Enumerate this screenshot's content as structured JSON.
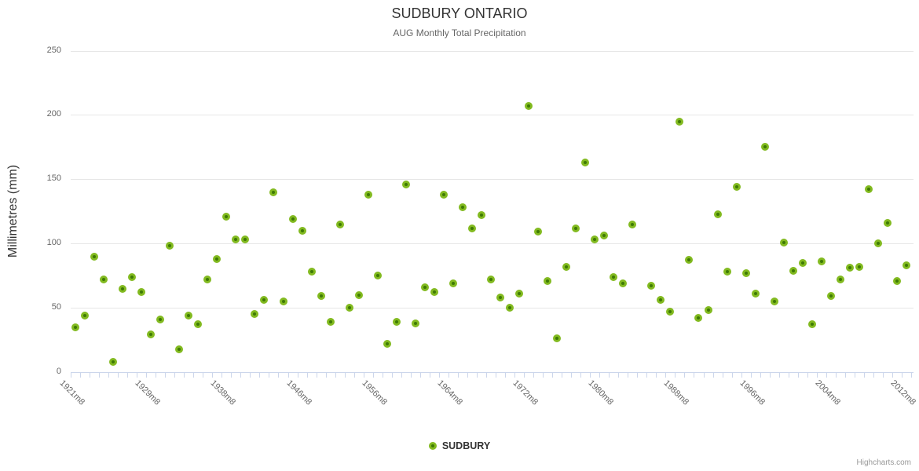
{
  "title": "SUDBURY ONTARIO",
  "subtitle": "AUG Monthly Total Precipitation",
  "y_axis": {
    "title": "Millimetres (mm)",
    "ticks": [
      0,
      50,
      100,
      150,
      200,
      250
    ],
    "max": 250
  },
  "x_axis": {
    "label_step": 8
  },
  "legend": {
    "label": "SUDBURY"
  },
  "credits": "Highcharts.com",
  "colors": {
    "marker_fill": "#3e7a04",
    "marker_line": "#82ba20",
    "grid": "#e6e6e6",
    "axis": "#ccd6eb",
    "text_dark": "#333333",
    "text_gray": "#666666",
    "credits_gray": "#999999"
  },
  "chart_data": {
    "type": "scatter",
    "title": "SUDBURY ONTARIO",
    "subtitle": "AUG Monthly Total Precipitation",
    "xlabel": "",
    "ylabel": "Millimetres (mm)",
    "ylim": [
      0,
      250
    ],
    "grid": true,
    "legend_position": "bottom",
    "categories": [
      "1921m8",
      "1922m8",
      "1923m8",
      "1924m8",
      "1925m8",
      "1926m8",
      "1927m8",
      "1928m8",
      "1929m8",
      "1930m8",
      "1932m8",
      "1933m8",
      "1934m8",
      "1935m8",
      "1936m8",
      "1937m8",
      "1938m8",
      "1939m8",
      "1940m8",
      "1941m8",
      "1942m8",
      "1943m8",
      "1944m8",
      "1945m8",
      "1946m8",
      "1947m8",
      "1949m8",
      "1950m8",
      "1951m8",
      "1953m8",
      "1954m8",
      "1955m8",
      "1956m8",
      "1957m8",
      "1958m8",
      "1959m8",
      "1960m8",
      "1961m8",
      "1962m8",
      "1963m8",
      "1964m8",
      "1965m8",
      "1966m8",
      "1967m8",
      "1968m8",
      "1969m8",
      "1970m8",
      "1971m8",
      "1972m8",
      "1973m8",
      "1974m8",
      "1975m8",
      "1976m8",
      "1977m8",
      "1978m8",
      "1979m8",
      "1980m8",
      "1981m8",
      "1982m8",
      "1983m8",
      "1984m8",
      "1985m8",
      "1986m8",
      "1987m8",
      "1988m8",
      "1989m8",
      "1990m8",
      "1991m8",
      "1992m8",
      "1993m8",
      "1994m8",
      "1995m8",
      "1996m8",
      "1997m8",
      "1998m8",
      "1999m8",
      "2000m8",
      "2001m8",
      "2002m8",
      "2003m8",
      "2004m8",
      "2005m8",
      "2006m8",
      "2007m8",
      "2008m8",
      "2009m8",
      "2010m8",
      "2011m8",
      "2012m8"
    ],
    "series": [
      {
        "name": "SUDBURY",
        "values": [
          35,
          44,
          90,
          72,
          8,
          65,
          74,
          62,
          29,
          41,
          98,
          18,
          44,
          37,
          72,
          88,
          121,
          103,
          103,
          45,
          56,
          140,
          55,
          119,
          110,
          78,
          59,
          39,
          115,
          50,
          60,
          138,
          75,
          22,
          39,
          146,
          38,
          66,
          62,
          138,
          69,
          128,
          112,
          122,
          72,
          58,
          50,
          61,
          207,
          109,
          71,
          26,
          82,
          112,
          163,
          103,
          106,
          74,
          69,
          115,
          null,
          67,
          56,
          47,
          195,
          87,
          42,
          48,
          123,
          78,
          144,
          77,
          61,
          175,
          55,
          101,
          79,
          85,
          37,
          86,
          59,
          72,
          81,
          82,
          142,
          100,
          116,
          71,
          83
        ]
      }
    ]
  }
}
